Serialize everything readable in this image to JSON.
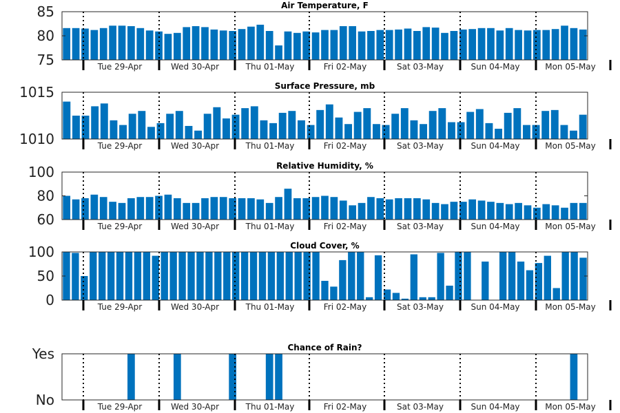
{
  "chart_data": [
    {
      "type": "bar",
      "title": "Air Temperature, F",
      "ylim": [
        75,
        85
      ],
      "yticks": [
        75,
        80,
        85
      ],
      "day_labels": [
        "Tue 29-Apr",
        "Wed 30-Apr",
        "Thu 01-May",
        "Fri 02-May",
        "Sat 03-May",
        "Sun 04-May",
        "Mon 05-May"
      ],
      "values": [
        81.6,
        81.6,
        81.5,
        81.2,
        81.6,
        82.1,
        82.1,
        82.0,
        81.6,
        81.1,
        80.9,
        80.4,
        80.6,
        81.8,
        82.0,
        81.8,
        81.3,
        81.1,
        81.0,
        81.4,
        81.9,
        82.3,
        81.0,
        78.0,
        80.9,
        80.6,
        80.9,
        80.7,
        81.2,
        81.2,
        82.0,
        82.0,
        80.9,
        81.0,
        81.2,
        81.2,
        81.3,
        81.5,
        81.0,
        81.8,
        81.7,
        80.6,
        81.0,
        81.3,
        81.4,
        81.6,
        81.6,
        81.1,
        81.6,
        81.2,
        81.1,
        81.2,
        81.2,
        81.4,
        82.1,
        81.6,
        81.3
      ]
    },
    {
      "type": "bar",
      "title": "Surface Pressure, mb",
      "ylim": [
        1010,
        1015
      ],
      "yticks": [
        1010,
        1015
      ],
      "day_labels": [
        "Tue 29-Apr",
        "Wed 30-Apr",
        "Thu 01-May",
        "Fri 02-May",
        "Sat 03-May",
        "Sun 04-May",
        "Mon 05-May"
      ],
      "values": [
        1014.0,
        1012.5,
        1012.5,
        1013.5,
        1013.8,
        1012.0,
        1011.5,
        1012.7,
        1013.0,
        1011.3,
        1011.7,
        1012.7,
        1013.0,
        1011.4,
        1010.9,
        1012.7,
        1013.4,
        1012.2,
        1012.6,
        1013.3,
        1013.5,
        1012.0,
        1011.7,
        1012.8,
        1013.0,
        1012.0,
        1011.5,
        1013.1,
        1013.7,
        1012.3,
        1011.6,
        1012.9,
        1013.3,
        1011.6,
        1011.5,
        1012.7,
        1013.3,
        1012.0,
        1011.6,
        1013.0,
        1013.3,
        1011.8,
        1011.8,
        1012.9,
        1013.2,
        1011.7,
        1011.1,
        1012.8,
        1013.3,
        1011.5,
        1011.5,
        1013.0,
        1013.1,
        1011.5,
        1010.9,
        1012.6
      ]
    },
    {
      "type": "bar",
      "title": "Relative Humidity, %",
      "ylim": [
        60,
        100
      ],
      "yticks": [
        60,
        80,
        100
      ],
      "day_labels": [
        "Tue 29-Apr",
        "Wed 30-Apr",
        "Thu 01-May",
        "Fri 02-May",
        "Sat 03-May",
        "Sun 04-May",
        "Mon 05-May"
      ],
      "values": [
        80,
        77,
        78,
        81,
        79,
        75,
        74,
        78,
        79,
        79,
        80,
        81,
        78,
        74,
        74,
        78,
        79,
        79,
        78,
        78,
        78,
        77,
        74,
        79,
        86,
        78,
        78,
        79,
        80,
        79,
        76,
        72,
        74,
        79,
        78,
        77,
        78,
        78,
        78,
        77,
        74,
        73,
        75,
        75,
        77,
        76,
        75,
        74,
        73,
        74,
        72,
        70,
        73,
        72,
        70,
        74,
        74
      ]
    },
    {
      "type": "bar",
      "title": "Cloud Cover, %",
      "ylim": [
        0,
        100
      ],
      "yticks": [
        0,
        50,
        100
      ],
      "day_labels": [
        "Tue 29-Apr",
        "Wed 30-Apr",
        "Thu 01-May",
        "Fri 02-May",
        "Sat 03-May",
        "Sun 04-May",
        "Mon 05-May"
      ],
      "values": [
        100,
        98,
        50,
        100,
        100,
        100,
        100,
        100,
        100,
        100,
        92,
        100,
        100,
        100,
        100,
        100,
        100,
        100,
        100,
        100,
        100,
        100,
        100,
        100,
        100,
        100,
        100,
        100,
        100,
        40,
        28,
        83,
        100,
        100,
        6,
        93,
        22,
        15,
        3,
        95,
        6,
        6,
        98,
        30,
        100,
        100,
        0,
        80,
        0,
        100,
        100,
        80,
        62,
        77,
        92,
        25,
        100,
        100,
        88
      ]
    },
    {
      "type": "bar",
      "title": "Chance of Rain?",
      "ylim": [
        0,
        1
      ],
      "yticks": [
        0,
        1
      ],
      "ytick_labels": [
        "No",
        "Yes"
      ],
      "day_labels": [
        "Tue 29-Apr",
        "Wed 30-Apr",
        "Thu 01-May",
        "Fri 02-May",
        "Sat 03-May",
        "Sun 04-May",
        "Mon 05-May"
      ],
      "values": [
        0,
        0,
        0,
        0,
        0,
        0,
        0,
        1,
        0,
        0,
        0,
        0,
        1,
        0,
        0,
        0,
        0,
        0,
        1,
        0,
        0,
        0,
        1,
        1,
        0,
        0,
        0,
        0,
        0,
        0,
        0,
        0,
        0,
        0,
        0,
        0,
        0,
        0,
        0,
        0,
        0,
        0,
        0,
        0,
        0,
        0,
        0,
        0,
        0,
        0,
        0,
        0,
        0,
        0,
        0,
        1,
        0
      ]
    }
  ]
}
